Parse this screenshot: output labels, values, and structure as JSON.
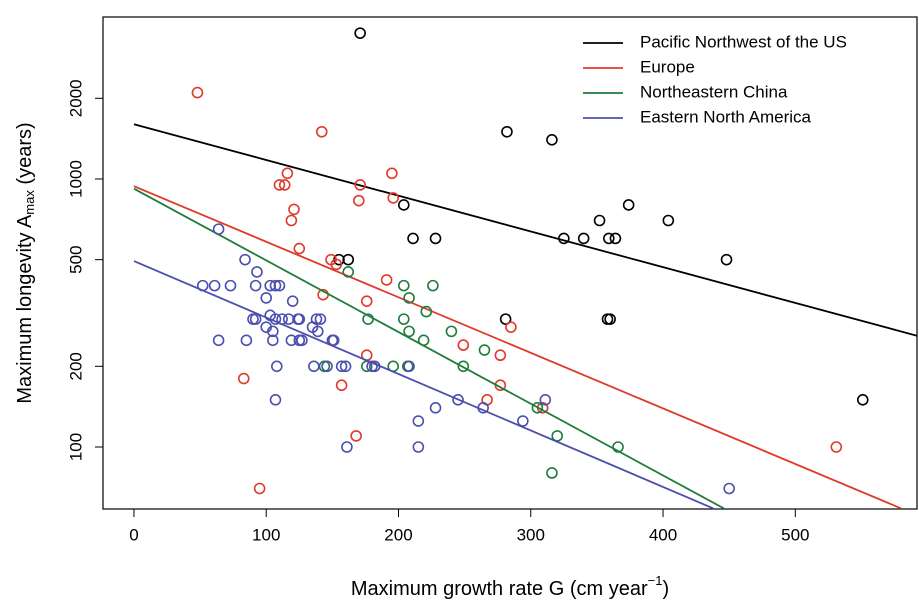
{
  "chart_data": {
    "type": "scatter",
    "xlabel": [
      "Maximum growth rate G (cm year",
      "−1",
      ")"
    ],
    "ylabel": [
      "Maximum longevity A",
      "max",
      " (years)"
    ],
    "xlim": [
      -23.4,
      592
    ],
    "ylim": [
      58.7,
      4021
    ],
    "log_y": true,
    "xticks": [
      0,
      100,
      200,
      300,
      400,
      500
    ],
    "yticks": [
      100,
      200,
      500,
      1000,
      2000
    ],
    "legend": "top-right",
    "series": [
      {
        "name": "Pacific Northwest of the US",
        "color": "#000000",
        "x": [
          171,
          282,
          316,
          204,
          211,
          228,
          155,
          162,
          325,
          340,
          359,
          364,
          352,
          374,
          404,
          448,
          281,
          358,
          360,
          551
        ],
        "values": [
          3500,
          1500,
          1400,
          800,
          600,
          600,
          500,
          500,
          600,
          600,
          600,
          600,
          700,
          800,
          700,
          500,
          300,
          300,
          300,
          150
        ],
        "fit": {
          "x": [
            0,
            592
          ],
          "values": [
            1600,
            260
          ]
        }
      },
      {
        "name": "Europe",
        "color": "#df3a2a",
        "x": [
          48,
          142,
          114,
          116,
          110,
          195,
          171,
          170,
          196,
          121,
          119,
          125,
          149,
          153,
          143,
          191,
          176,
          285,
          249,
          277,
          176,
          157,
          83,
          277,
          267,
          309,
          168,
          95,
          531
        ],
        "values": [
          2100,
          1500,
          950,
          1050,
          950,
          1050,
          950,
          830,
          850,
          770,
          700,
          550,
          500,
          480,
          370,
          420,
          350,
          280,
          240,
          220,
          220,
          170,
          180,
          170,
          150,
          140,
          110,
          70,
          100
        ],
        "fit": {
          "x": [
            0,
            580
          ],
          "values": [
            940,
            59
          ]
        }
      },
      {
        "name": "Northeastern China",
        "color": "#1e7d3a",
        "x": [
          162,
          226,
          204,
          208,
          221,
          177,
          204,
          240,
          208,
          219,
          265,
          176,
          196,
          207,
          249,
          144,
          305,
          320,
          316,
          366
        ],
        "values": [
          450,
          400,
          400,
          360,
          320,
          300,
          300,
          270,
          270,
          250,
          230,
          200,
          200,
          200,
          200,
          200,
          140,
          110,
          80,
          100
        ],
        "fit": {
          "x": [
            0,
            446
          ],
          "values": [
            920,
            59
          ]
        }
      },
      {
        "name": "Eastern North America",
        "color": "#4b4fae",
        "x": [
          64,
          52,
          61,
          73,
          84,
          93,
          92,
          103,
          107,
          110,
          100,
          120,
          90,
          92,
          103,
          107,
          112,
          117,
          124,
          125,
          138,
          141,
          100,
          105,
          135,
          139,
          119,
          125,
          127,
          150,
          151,
          64,
          85,
          105,
          136,
          146,
          157,
          160,
          180,
          182,
          208,
          108,
          107,
          245,
          311,
          228,
          264,
          294,
          215,
          161,
          215,
          450
        ],
        "values": [
          650,
          400,
          400,
          400,
          500,
          450,
          400,
          400,
          400,
          400,
          360,
          350,
          300,
          300,
          310,
          300,
          300,
          300,
          300,
          300,
          300,
          300,
          280,
          270,
          280,
          270,
          250,
          250,
          250,
          250,
          250,
          250,
          250,
          250,
          200,
          200,
          200,
          200,
          200,
          200,
          200,
          200,
          150,
          150,
          150,
          140,
          140,
          125,
          125,
          100,
          100,
          70
        ],
        "fit": {
          "x": [
            0,
            438
          ],
          "values": [
            494,
            59
          ]
        }
      }
    ]
  }
}
